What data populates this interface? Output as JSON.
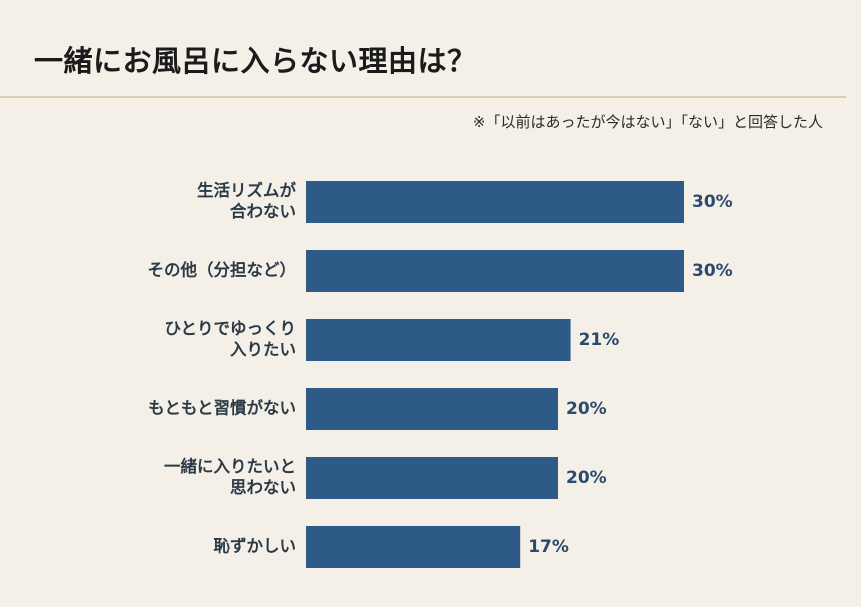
{
  "title": "一緒にお風呂に入らない理由は？",
  "note": "※「以前はあったが今はない」「ない」と回答した人",
  "colors": {
    "bar": "#2e5a88",
    "background": "#f5f0e7",
    "value_text": "#2b4a6e"
  },
  "chart_data": {
    "type": "bar",
    "orientation": "horizontal",
    "title": "一緒にお風呂に入らない理由は？",
    "categories": [
      [
        "生活リズムが",
        "合わない"
      ],
      [
        "その他（分担など）"
      ],
      [
        "ひとりでゆっくり",
        "入りたい"
      ],
      [
        "もともと習慣がない"
      ],
      [
        "一緒に入りたいと",
        "思わない"
      ],
      [
        "恥ずかしい"
      ]
    ],
    "values": [
      30,
      30,
      21,
      20,
      20,
      17
    ],
    "value_labels": [
      "30%",
      "30%",
      "21%",
      "20%",
      "20%",
      "17%"
    ],
    "unit": "%",
    "xlim": [
      0,
      30
    ],
    "grid": false,
    "legend": "none"
  }
}
